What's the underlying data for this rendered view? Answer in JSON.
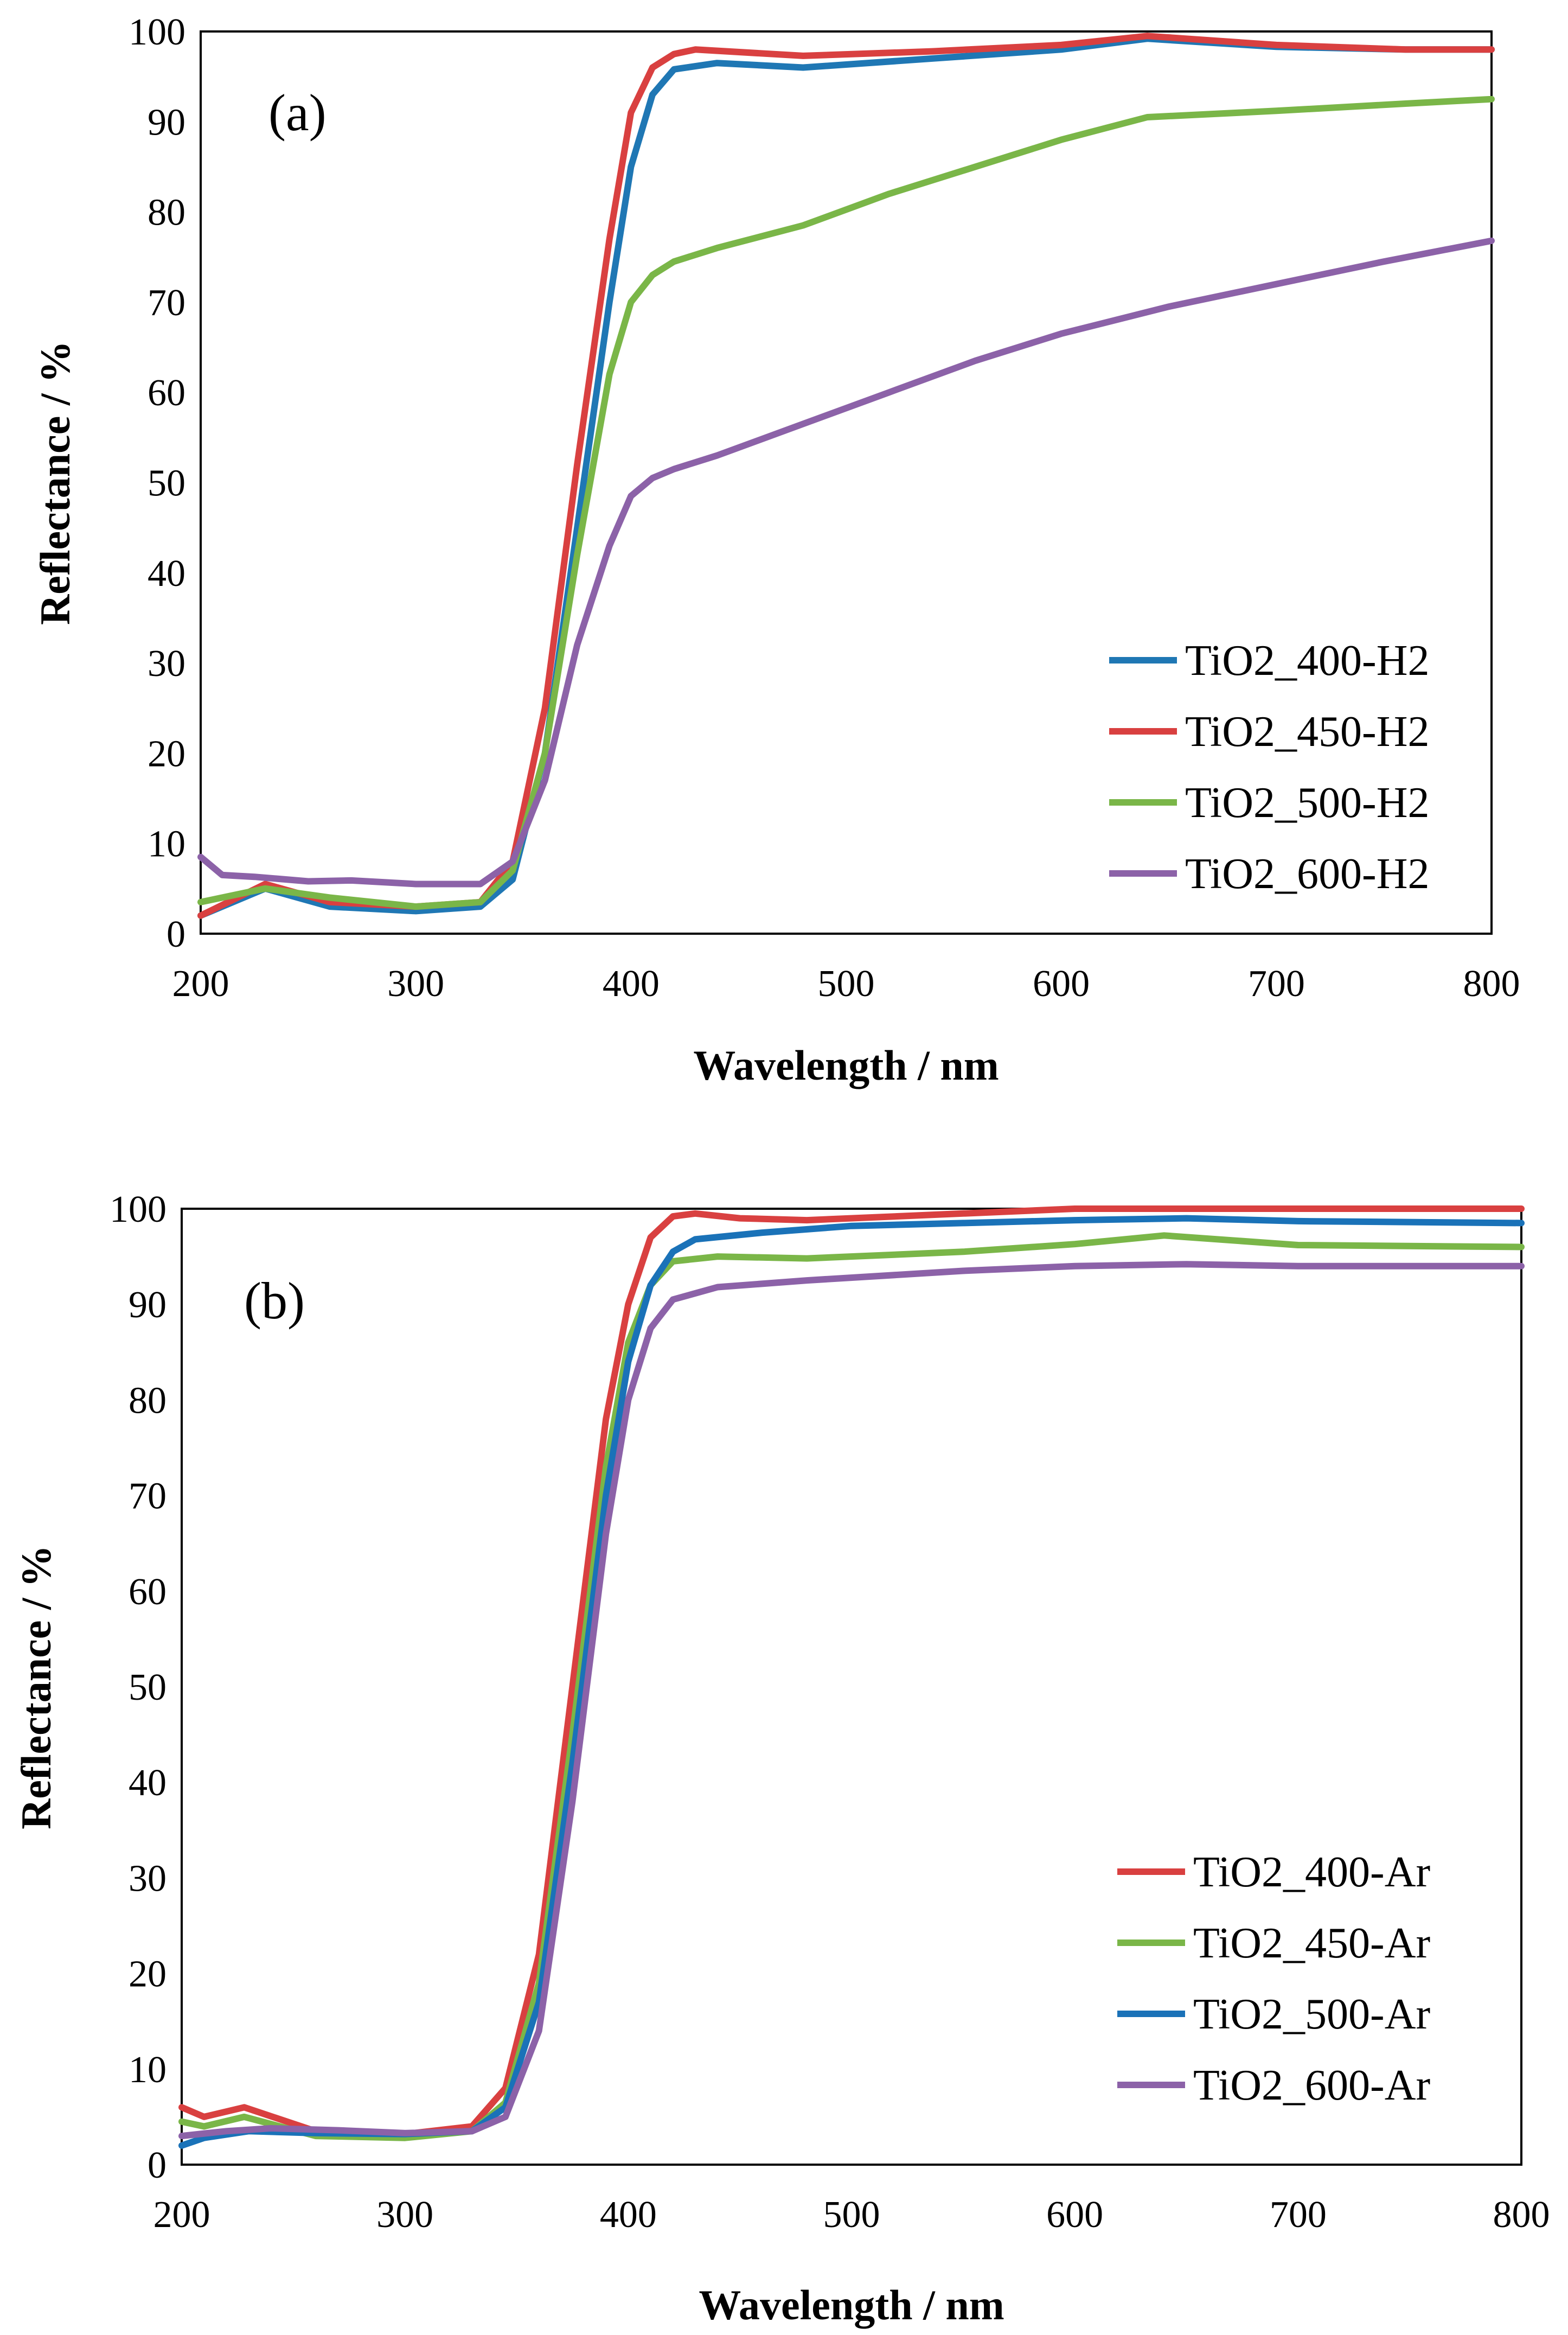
{
  "chart_data": [
    {
      "type": "line",
      "panel_label": "(a)",
      "xlabel": "Wavelength / nm",
      "ylabel": "Reflectance / %",
      "xlim": [
        200,
        800
      ],
      "ylim": [
        0,
        100
      ],
      "xticks": [
        200,
        300,
        400,
        500,
        600,
        700,
        800
      ],
      "yticks": [
        0,
        10,
        20,
        30,
        40,
        50,
        60,
        70,
        80,
        90,
        100
      ],
      "grid": false,
      "legend_position": "bottom-right",
      "series": [
        {
          "name": "TiO2_400-H2",
          "color": "#1f77b4",
          "x": [
            200,
            230,
            260,
            300,
            330,
            345,
            360,
            375,
            390,
            400,
            410,
            420,
            440,
            480,
            540,
            600,
            640,
            700,
            760,
            800
          ],
          "y": [
            2,
            5,
            3,
            2.5,
            3,
            6,
            20,
            45,
            70,
            85,
            93,
            95.8,
            96.5,
            96,
            97,
            98,
            99.2,
            98.3,
            98,
            98
          ]
        },
        {
          "name": "TiO2_450-H2",
          "color": "#d94040",
          "x": [
            200,
            230,
            260,
            300,
            330,
            345,
            360,
            375,
            390,
            400,
            410,
            420,
            430,
            480,
            540,
            600,
            640,
            700,
            760,
            800
          ],
          "y": [
            2,
            5.5,
            3.5,
            3,
            3.5,
            8,
            25,
            52,
            77,
            91,
            96,
            97.5,
            98,
            97.3,
            97.8,
            98.5,
            99.5,
            98.5,
            98,
            98
          ]
        },
        {
          "name": "TiO2_500-H2",
          "color": "#7ab648",
          "x": [
            200,
            230,
            260,
            300,
            330,
            345,
            360,
            375,
            390,
            400,
            410,
            420,
            440,
            480,
            520,
            560,
            600,
            640,
            700,
            760,
            800
          ],
          "y": [
            3.5,
            5,
            4,
            3,
            3.5,
            7,
            20,
            42,
            62,
            70,
            73,
            74.5,
            76,
            78.5,
            82,
            85,
            88,
            90.5,
            91.2,
            92,
            92.5
          ]
        },
        {
          "name": "TiO2_600-H2",
          "color": "#8c62a8",
          "x": [
            200,
            210,
            225,
            250,
            270,
            300,
            330,
            345,
            360,
            375,
            390,
            400,
            410,
            420,
            440,
            480,
            520,
            560,
            600,
            650,
            700,
            750,
            800
          ],
          "y": [
            8.5,
            6.5,
            6.3,
            5.8,
            5.9,
            5.5,
            5.5,
            8,
            17,
            32,
            43,
            48.5,
            50.5,
            51.5,
            53,
            56.5,
            60,
            63.5,
            66.5,
            69.5,
            72,
            74.5,
            76.8
          ]
        }
      ]
    },
    {
      "type": "line",
      "panel_label": "(b)",
      "xlabel": "Wavelength / nm",
      "ylabel": "Reflectance / %",
      "xlim": [
        200,
        800
      ],
      "ylim": [
        0,
        100
      ],
      "xticks": [
        200,
        300,
        400,
        500,
        600,
        700,
        800
      ],
      "yticks": [
        0,
        10,
        20,
        30,
        40,
        50,
        60,
        70,
        80,
        90,
        100
      ],
      "grid": false,
      "legend_position": "bottom-right",
      "series": [
        {
          "name": "TiO2_400-Ar",
          "color": "#d94040",
          "x": [
            200,
            210,
            228,
            260,
            300,
            330,
            345,
            360,
            375,
            390,
            400,
            410,
            420,
            430,
            450,
            480,
            550,
            600,
            700,
            800
          ],
          "y": [
            6,
            5,
            6,
            3.5,
            3.2,
            4,
            8,
            22,
            50,
            78,
            90,
            97,
            99.2,
            99.5,
            99,
            98.8,
            99.5,
            100,
            100,
            100
          ]
        },
        {
          "name": "TiO2_450-Ar",
          "color": "#7ab648",
          "x": [
            200,
            210,
            228,
            260,
            300,
            330,
            345,
            360,
            375,
            390,
            400,
            410,
            420,
            440,
            480,
            550,
            600,
            640,
            700,
            800
          ],
          "y": [
            4.5,
            4,
            5,
            3,
            2.8,
            3.5,
            6.5,
            19,
            45,
            73,
            86,
            92,
            94.5,
            95,
            94.8,
            95.5,
            96.3,
            97.2,
            96.2,
            96
          ]
        },
        {
          "name": "TiO2_500-Ar",
          "color": "#1a72b8",
          "x": [
            200,
            210,
            230,
            260,
            300,
            330,
            345,
            360,
            375,
            390,
            400,
            410,
            420,
            430,
            460,
            500,
            550,
            600,
            650,
            700,
            800
          ],
          "y": [
            2,
            2.8,
            3.5,
            3.3,
            3.2,
            3.5,
            6,
            17,
            42,
            70,
            84,
            92,
            95.5,
            96.8,
            97.5,
            98.2,
            98.5,
            98.8,
            99,
            98.7,
            98.5
          ]
        },
        {
          "name": "TiO2_600-Ar",
          "color": "#8c62a8",
          "x": [
            200,
            220,
            240,
            270,
            300,
            330,
            345,
            360,
            375,
            390,
            400,
            410,
            420,
            440,
            480,
            550,
            600,
            650,
            700,
            800
          ],
          "y": [
            3,
            3.5,
            3.8,
            3.6,
            3.3,
            3.5,
            5,
            14,
            38,
            66,
            80,
            87.5,
            90.5,
            91.8,
            92.5,
            93.5,
            94,
            94.2,
            94,
            94
          ]
        }
      ]
    }
  ]
}
